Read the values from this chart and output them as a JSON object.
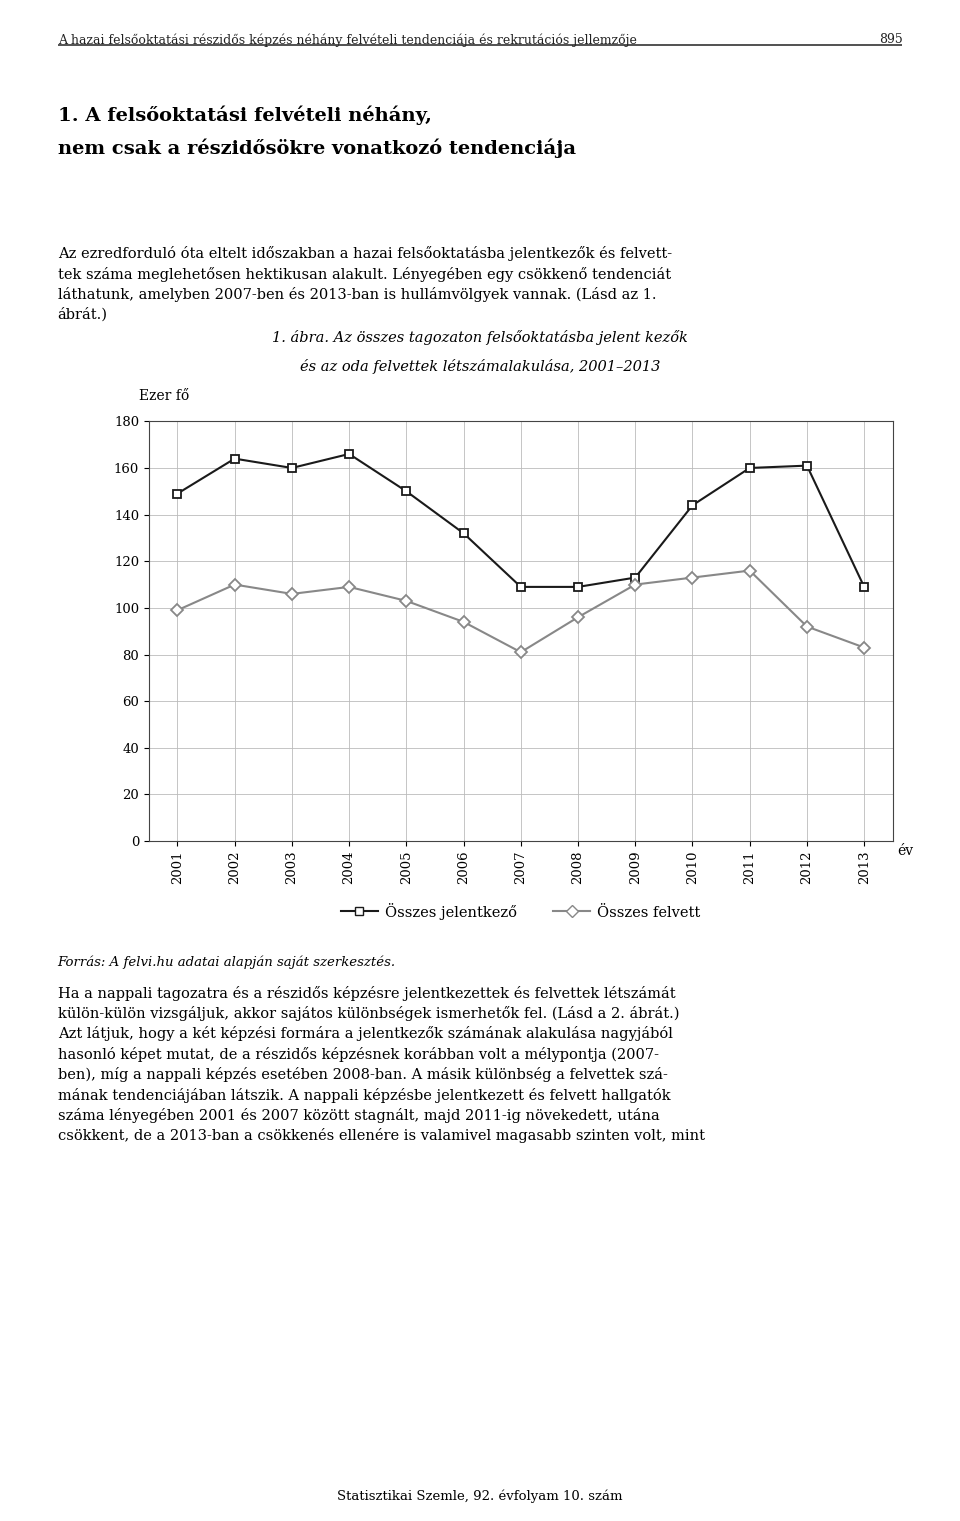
{
  "years": [
    2001,
    2002,
    2003,
    2004,
    2005,
    2006,
    2007,
    2008,
    2009,
    2010,
    2011,
    2012,
    2013
  ],
  "jelentkezo": [
    149,
    164,
    160,
    166,
    150,
    132,
    109,
    109,
    113,
    144,
    160,
    161,
    109
  ],
  "felvett": [
    99,
    110,
    106,
    109,
    103,
    94,
    81,
    96,
    110,
    113,
    116,
    92,
    83
  ],
  "chart_title_line1": "1. ábra. Az összes tagozaton felsőoktatásba jelent kezők",
  "chart_title_line2": "és az oda felvettek létszámalakulása, 2001–2013",
  "ylabel_axis": "Ezer fő",
  "xlabel_axis": "év",
  "legend_jelentkezo": "Összes jelentkező",
  "legend_felvett": "Összes felvett",
  "ylim": [
    0,
    180
  ],
  "yticks": [
    0,
    20,
    40,
    60,
    80,
    100,
    120,
    140,
    160,
    180
  ],
  "line1_color": "#1a1a1a",
  "line2_color": "#888888",
  "marker1": "s",
  "marker2": "D",
  "background_color": "#ffffff",
  "grid_color": "#bbbbbb",
  "header_text": "A hazai felsőoktatási részidős képzés néhány felvételi tendenciája és rekrutációs jellemzője",
  "header_pagenum": "895",
  "section_title_line1": "1. A felsőoktatási felvételi néhány,",
  "section_title_line2": "nem csak a részidősökre vonatkozó tendenciája",
  "body_text_top": "Az ezredforduló óta eltelt időszakban a hazai felsőoktatásba jelent kezők és felvett-\ntek száma megleh etősen hektikusan alakult. Lényegében egy csökkenő tendenciát\nláthatunk, amelyben 2007-ben és 2013-ban is hullámvölgyek vannak. (Lásd az 1.\nábrát.)",
  "source_text": "Forrás: A felvi.hu adatai alapján saját szerkesztés.",
  "body_text_bottom": "Ha a nappali tagozatra és a részidős képzésre jelent kezet tek és felvett ek létszámát\nkülön-külön vizsgáljuk, akkor sajátos különbségek ismerhetők fel. (Lásd a 2. ábrát.)\nAzt látjuk, hogy a két képzési formára a jelent kezők számának alakulása nagjából\nhasonló képet mutat, de a részidős képzésnek korábban volt a mélypontja (2007-\nben), míg a nappali képzés esetében 2008-ban. A másik különbség a felvett ek szá-\nmának tendenciájában látszik. A nappali képzésbe jelent kezett és felvett hallgatók\nszáma lényegében 2001 és 2007 között stagnált, majd 2011-ig növekedett, utána\ncsökkent, de a 2013-ban a csökkenés ellenére is valamivel magasabb szinten volt, mint",
  "footer_text": "Statisztikai Szemle, 92. évfolyam 10. szám"
}
